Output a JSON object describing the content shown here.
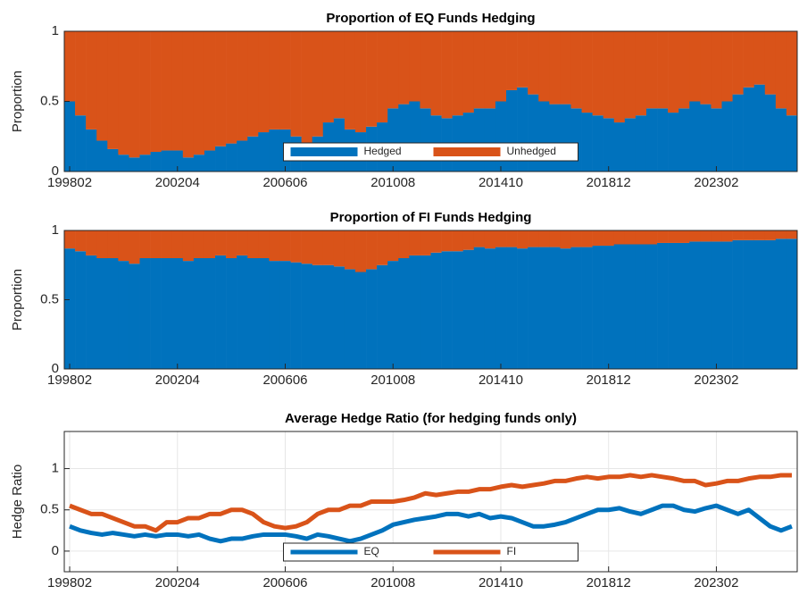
{
  "chart_data": [
    {
      "type": "bar",
      "stacked": true,
      "title": "Proportion of EQ Funds Hedging",
      "ylabel": "Proportion",
      "categories": [
        "199802",
        null,
        null,
        null,
        null,
        null,
        null,
        null,
        null,
        null,
        "200204",
        null,
        null,
        null,
        null,
        null,
        null,
        null,
        null,
        null,
        "200606",
        null,
        null,
        null,
        null,
        null,
        null,
        null,
        null,
        null,
        "201008",
        null,
        null,
        null,
        null,
        null,
        null,
        null,
        null,
        null,
        "201410",
        null,
        null,
        null,
        null,
        null,
        null,
        null,
        null,
        null,
        "201812",
        null,
        null,
        null,
        null,
        null,
        null,
        null,
        null,
        null,
        "202302",
        null,
        null,
        null,
        null,
        null,
        null,
        null
      ],
      "series": [
        {
          "name": "Hedged",
          "color": "#0072BD",
          "values": [
            0.5,
            0.4,
            0.3,
            0.22,
            0.16,
            0.12,
            0.1,
            0.12,
            0.14,
            0.15,
            0.15,
            0.1,
            0.12,
            0.15,
            0.18,
            0.2,
            0.22,
            0.25,
            0.28,
            0.3,
            0.3,
            0.25,
            0.2,
            0.25,
            0.35,
            0.38,
            0.3,
            0.28,
            0.32,
            0.35,
            0.45,
            0.48,
            0.5,
            0.45,
            0.4,
            0.38,
            0.4,
            0.42,
            0.45,
            0.45,
            0.5,
            0.58,
            0.6,
            0.55,
            0.5,
            0.48,
            0.48,
            0.45,
            0.42,
            0.4,
            0.38,
            0.35,
            0.38,
            0.4,
            0.45,
            0.45,
            0.42,
            0.45,
            0.5,
            0.48,
            0.45,
            0.5,
            0.55,
            0.6,
            0.62,
            0.55,
            0.45,
            0.4
          ]
        },
        {
          "name": "Unhedged",
          "color": "#D95319",
          "values": [
            0.5,
            0.6,
            0.7,
            0.78,
            0.84,
            0.88,
            0.9,
            0.88,
            0.86,
            0.85,
            0.85,
            0.9,
            0.88,
            0.85,
            0.82,
            0.8,
            0.78,
            0.75,
            0.72,
            0.7,
            0.7,
            0.75,
            0.8,
            0.75,
            0.65,
            0.62,
            0.7,
            0.72,
            0.68,
            0.65,
            0.55,
            0.52,
            0.5,
            0.55,
            0.6,
            0.62,
            0.6,
            0.58,
            0.55,
            0.55,
            0.5,
            0.42,
            0.4,
            0.45,
            0.5,
            0.52,
            0.52,
            0.55,
            0.58,
            0.6,
            0.62,
            0.65,
            0.62,
            0.6,
            0.55,
            0.55,
            0.58,
            0.55,
            0.5,
            0.52,
            0.55,
            0.5,
            0.45,
            0.4,
            0.38,
            0.45,
            0.55,
            0.6
          ]
        }
      ],
      "ylim": [
        0,
        1
      ],
      "yticks": [
        0,
        0.5,
        1
      ],
      "grid": false,
      "legend": "lower center"
    },
    {
      "type": "bar",
      "stacked": true,
      "title": "Proportion of FI Funds Hedging",
      "ylabel": "Proportion",
      "categories": [
        "199802",
        null,
        null,
        null,
        null,
        null,
        null,
        null,
        null,
        null,
        "200204",
        null,
        null,
        null,
        null,
        null,
        null,
        null,
        null,
        null,
        "200606",
        null,
        null,
        null,
        null,
        null,
        null,
        null,
        null,
        null,
        "201008",
        null,
        null,
        null,
        null,
        null,
        null,
        null,
        null,
        null,
        "201410",
        null,
        null,
        null,
        null,
        null,
        null,
        null,
        null,
        null,
        "201812",
        null,
        null,
        null,
        null,
        null,
        null,
        null,
        null,
        null,
        "202302",
        null,
        null,
        null,
        null,
        null,
        null,
        null
      ],
      "series": [
        {
          "name": "Hedged",
          "color": "#0072BD",
          "values": [
            0.87,
            0.85,
            0.82,
            0.8,
            0.8,
            0.78,
            0.76,
            0.8,
            0.8,
            0.8,
            0.8,
            0.78,
            0.8,
            0.8,
            0.82,
            0.8,
            0.82,
            0.8,
            0.8,
            0.78,
            0.78,
            0.77,
            0.76,
            0.75,
            0.75,
            0.74,
            0.72,
            0.7,
            0.72,
            0.75,
            0.78,
            0.8,
            0.82,
            0.82,
            0.84,
            0.85,
            0.85,
            0.86,
            0.88,
            0.87,
            0.88,
            0.88,
            0.87,
            0.88,
            0.88,
            0.88,
            0.87,
            0.88,
            0.88,
            0.89,
            0.89,
            0.9,
            0.9,
            0.9,
            0.9,
            0.91,
            0.91,
            0.91,
            0.92,
            0.92,
            0.92,
            0.92,
            0.93,
            0.93,
            0.93,
            0.93,
            0.94,
            0.94
          ]
        },
        {
          "name": "Unhedged",
          "color": "#D95319",
          "values": [
            0.13,
            0.15,
            0.18,
            0.2,
            0.2,
            0.22,
            0.24,
            0.2,
            0.2,
            0.2,
            0.2,
            0.22,
            0.2,
            0.2,
            0.18,
            0.2,
            0.18,
            0.2,
            0.2,
            0.22,
            0.22,
            0.23,
            0.24,
            0.25,
            0.25,
            0.26,
            0.28,
            0.3,
            0.28,
            0.25,
            0.22,
            0.2,
            0.18,
            0.18,
            0.16,
            0.15,
            0.15,
            0.14,
            0.12,
            0.13,
            0.12,
            0.12,
            0.13,
            0.12,
            0.12,
            0.12,
            0.13,
            0.12,
            0.12,
            0.11,
            0.11,
            0.1,
            0.1,
            0.1,
            0.1,
            0.09,
            0.09,
            0.09,
            0.08,
            0.08,
            0.08,
            0.08,
            0.07,
            0.07,
            0.07,
            0.07,
            0.06,
            0.06
          ]
        }
      ],
      "ylim": [
        0,
        1
      ],
      "yticks": [
        0,
        0.5,
        1
      ],
      "grid": false
    },
    {
      "type": "line",
      "title": "Average Hedge Ratio (for hedging funds only)",
      "ylabel": "Hedge Ratio",
      "categories": [
        "199802",
        null,
        null,
        null,
        null,
        null,
        null,
        null,
        null,
        null,
        "200204",
        null,
        null,
        null,
        null,
        null,
        null,
        null,
        null,
        null,
        "200606",
        null,
        null,
        null,
        null,
        null,
        null,
        null,
        null,
        null,
        "201008",
        null,
        null,
        null,
        null,
        null,
        null,
        null,
        null,
        null,
        "201410",
        null,
        null,
        null,
        null,
        null,
        null,
        null,
        null,
        null,
        "201812",
        null,
        null,
        null,
        null,
        null,
        null,
        null,
        null,
        null,
        "202302",
        null,
        null,
        null,
        null,
        null,
        null,
        null
      ],
      "series": [
        {
          "name": "EQ",
          "color": "#0072BD",
          "values": [
            0.3,
            0.25,
            0.22,
            0.2,
            0.22,
            0.2,
            0.18,
            0.2,
            0.18,
            0.2,
            0.2,
            0.18,
            0.2,
            0.15,
            0.12,
            0.15,
            0.15,
            0.18,
            0.2,
            0.2,
            0.2,
            0.18,
            0.15,
            0.2,
            0.18,
            0.15,
            0.12,
            0.15,
            0.2,
            0.25,
            0.32,
            0.35,
            0.38,
            0.4,
            0.42,
            0.45,
            0.45,
            0.42,
            0.45,
            0.4,
            0.42,
            0.4,
            0.35,
            0.3,
            0.3,
            0.32,
            0.35,
            0.4,
            0.45,
            0.5,
            0.5,
            0.52,
            0.48,
            0.45,
            0.5,
            0.55,
            0.55,
            0.5,
            0.48,
            0.52,
            0.55,
            0.5,
            0.45,
            0.5,
            0.4,
            0.3,
            0.25,
            0.3
          ]
        },
        {
          "name": "FI",
          "color": "#D95319",
          "values": [
            0.55,
            0.5,
            0.45,
            0.45,
            0.4,
            0.35,
            0.3,
            0.3,
            0.25,
            0.35,
            0.35,
            0.4,
            0.4,
            0.45,
            0.45,
            0.5,
            0.5,
            0.45,
            0.35,
            0.3,
            0.28,
            0.3,
            0.35,
            0.45,
            0.5,
            0.5,
            0.55,
            0.55,
            0.6,
            0.6,
            0.6,
            0.62,
            0.65,
            0.7,
            0.68,
            0.7,
            0.72,
            0.72,
            0.75,
            0.75,
            0.78,
            0.8,
            0.78,
            0.8,
            0.82,
            0.85,
            0.85,
            0.88,
            0.9,
            0.88,
            0.9,
            0.9,
            0.92,
            0.9,
            0.92,
            0.9,
            0.88,
            0.85,
            0.85,
            0.8,
            0.82,
            0.85,
            0.85,
            0.88,
            0.9,
            0.9,
            0.92,
            0.92
          ]
        }
      ],
      "ylim": [
        -0.25,
        1.45
      ],
      "yticks": [
        0,
        0.5,
        1
      ],
      "grid": true,
      "legend": "lower center"
    }
  ]
}
